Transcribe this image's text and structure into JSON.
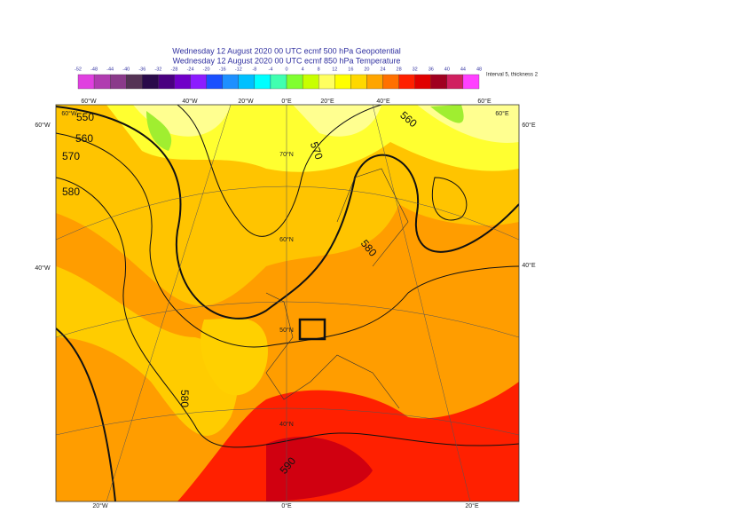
{
  "header": {
    "line1": "Wednesday 12 August 2020 00 UTC ecmf 500 hPa  Geopotential",
    "line2": "Wednesday 12 August 2020 00 UTC ecmf 850 hPa  Temperature",
    "note": "Interval 5, thickness 2"
  },
  "colorbar": {
    "ticks": [
      -52,
      -48,
      -44,
      -40,
      -36,
      -32,
      -28,
      -24,
      -20,
      -16,
      -12,
      -8,
      -4,
      0,
      4,
      8,
      12,
      16,
      20,
      24,
      28,
      32,
      36,
      40,
      44,
      48
    ],
    "colors": [
      "#e040e0",
      "#b03cb0",
      "#8a3a8a",
      "#553355",
      "#2a0a4a",
      "#4a0080",
      "#7000c8",
      "#8c1cff",
      "#1a50ff",
      "#1e90ff",
      "#00c0ff",
      "#00ffff",
      "#40ffb0",
      "#80ff30",
      "#c8ff00",
      "#ffff60",
      "#ffff00",
      "#ffd800",
      "#ffa500",
      "#ff7000",
      "#ff2000",
      "#e00000",
      "#a00020",
      "#d02060",
      "#ff40ff"
    ]
  },
  "map": {
    "top_lon": [
      "60°W",
      "40°W",
      "20°W",
      "0°E",
      "20°E",
      "40°E",
      "60°E"
    ],
    "bottom_lon": [
      "20°W",
      "0°E",
      "20°E"
    ],
    "left_lat": [
      "60°W",
      "40°W"
    ],
    "right_lat": [
      "60°E",
      "40°E"
    ],
    "corner": [
      "60°W",
      "60°E"
    ],
    "lat": [
      "70°N",
      "60°N",
      "50°N",
      "40°N"
    ],
    "contours": [
      "550",
      "560",
      "570",
      "580",
      "570",
      "560",
      "580",
      "580",
      "590"
    ]
  }
}
